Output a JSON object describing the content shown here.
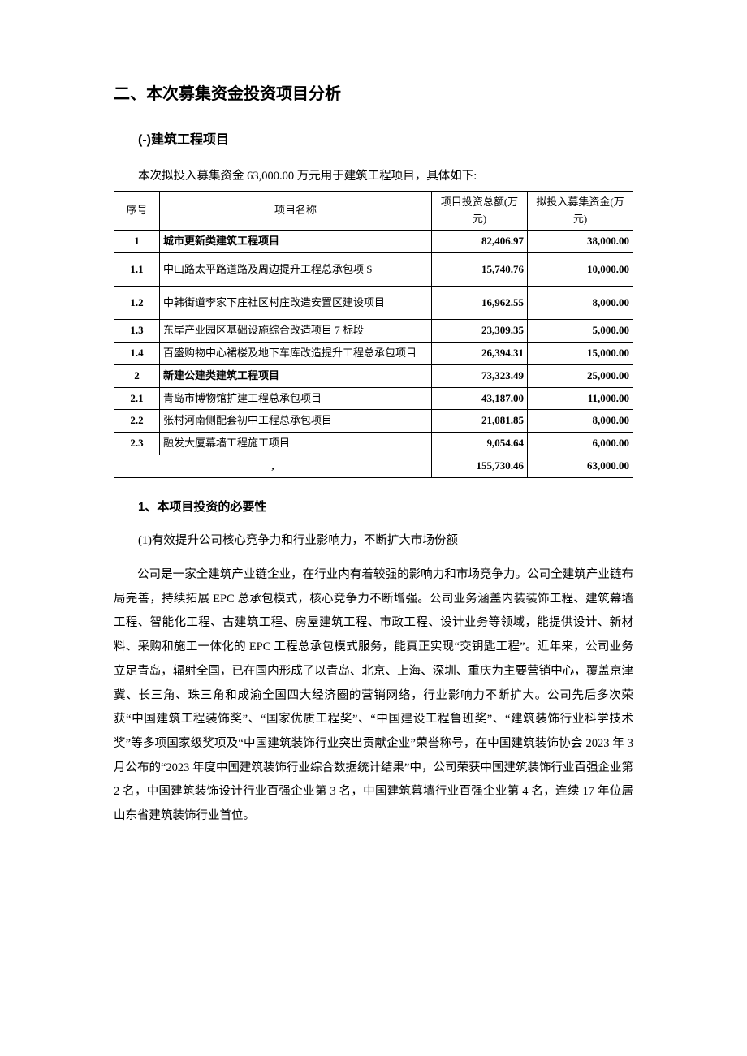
{
  "section_title": "二、本次募集资金投资项目分析",
  "subsection_title": "(-)建筑工程项目",
  "intro_line": "本次拟投入募集资金 63,000.00 万元用于建筑工程项目，具体如下:",
  "table": {
    "headers": [
      "序号",
      "项目名称",
      "项目投资总额(万元)",
      "拟投入募集资金(万元)"
    ],
    "rows": [
      {
        "idx": "1",
        "name": "城市更新类建筑工程项目",
        "total": "82,406.97",
        "fund": "38,000.00",
        "bold": true
      },
      {
        "idx": "1.1",
        "name": "中山路太平路道路及周边提升工程总承包项 S",
        "total": "15,740.76",
        "fund": "10,000.00",
        "tall": true
      },
      {
        "idx": "1.2",
        "name": "中韩街道李家下庄社区村庄改造安置区建设项目",
        "total": "16,962.55",
        "fund": "8,000.00",
        "tall": true
      },
      {
        "idx": "1.3",
        "name": "东岸产业园区基础设施综合改造项目 7 标段",
        "total": "23,309.35",
        "fund": "5,000.00"
      },
      {
        "idx": "1.4",
        "name": "百盛购物中心裙楼及地下车库改造提升工程总承包项目",
        "total": "26,394.31",
        "fund": "15,000.00"
      },
      {
        "idx": "2",
        "name": "新建公建类建筑工程项目",
        "total": "73,323.49",
        "fund": "25,000.00",
        "bold": true
      },
      {
        "idx": "2.1",
        "name": "青岛市博物馆扩建工程总承包项目",
        "total": "43,187.00",
        "fund": "11,000.00"
      },
      {
        "idx": "2.2",
        "name": "张村河南侧配套初中工程总承包项目",
        "total": "21,081.85",
        "fund": "8,000.00"
      },
      {
        "idx": "2.3",
        "name": "融发大厦幕墙工程施工项目",
        "total": "9,054.64",
        "fund": "6,000.00"
      }
    ],
    "sum": {
      "label": ",",
      "total": "155,730.46",
      "fund": "63,000.00"
    }
  },
  "necessity_title": "1、本项目投资的必要性",
  "para1_heading": "(1)有效提升公司核心竞争力和行业影响力，不断扩大市场份额",
  "body": "公司是一家全建筑产业链企业，在行业内有着较强的影响力和市场竞争力。公司全建筑产业链布局完善，持续拓展 EPC 总承包模式，核心竞争力不断增强。公司业务涵盖内装装饰工程、建筑幕墙工程、智能化工程、古建筑工程、房屋建筑工程、市政工程、设计业务等领域，能提供设计、新材料、采购和施工一体化的 EPC 工程总承包模式服务，能真正实现“交钥匙工程”。近年来，公司业务立足青岛，辐射全国，已在国内形成了以青岛、北京、上海、深圳、重庆为主要营销中心，覆盖京津冀、长三角、珠三角和成渝全国四大经济圈的营销网络，行业影响力不断扩大。公司先后多次荣获“中国建筑工程装饰奖”、“国家优质工程奖”、“中国建设工程鲁班奖”、“建筑装饰行业科学技术奖”等多项国家级奖项及“中国建筑装饰行业突出贡献企业”荣誉称号，在中国建筑装饰协会 2023 年 3 月公布的“2023 年度中国建筑装饰行业综合数据统计结果”中，公司荣获中国建筑装饰行业百强企业第 2 名，中国建筑装饰设计行业百强企业第 3 名，中国建筑幕墙行业百强企业第 4 名，连续 17 年位居山东省建筑装饰行业首位。"
}
